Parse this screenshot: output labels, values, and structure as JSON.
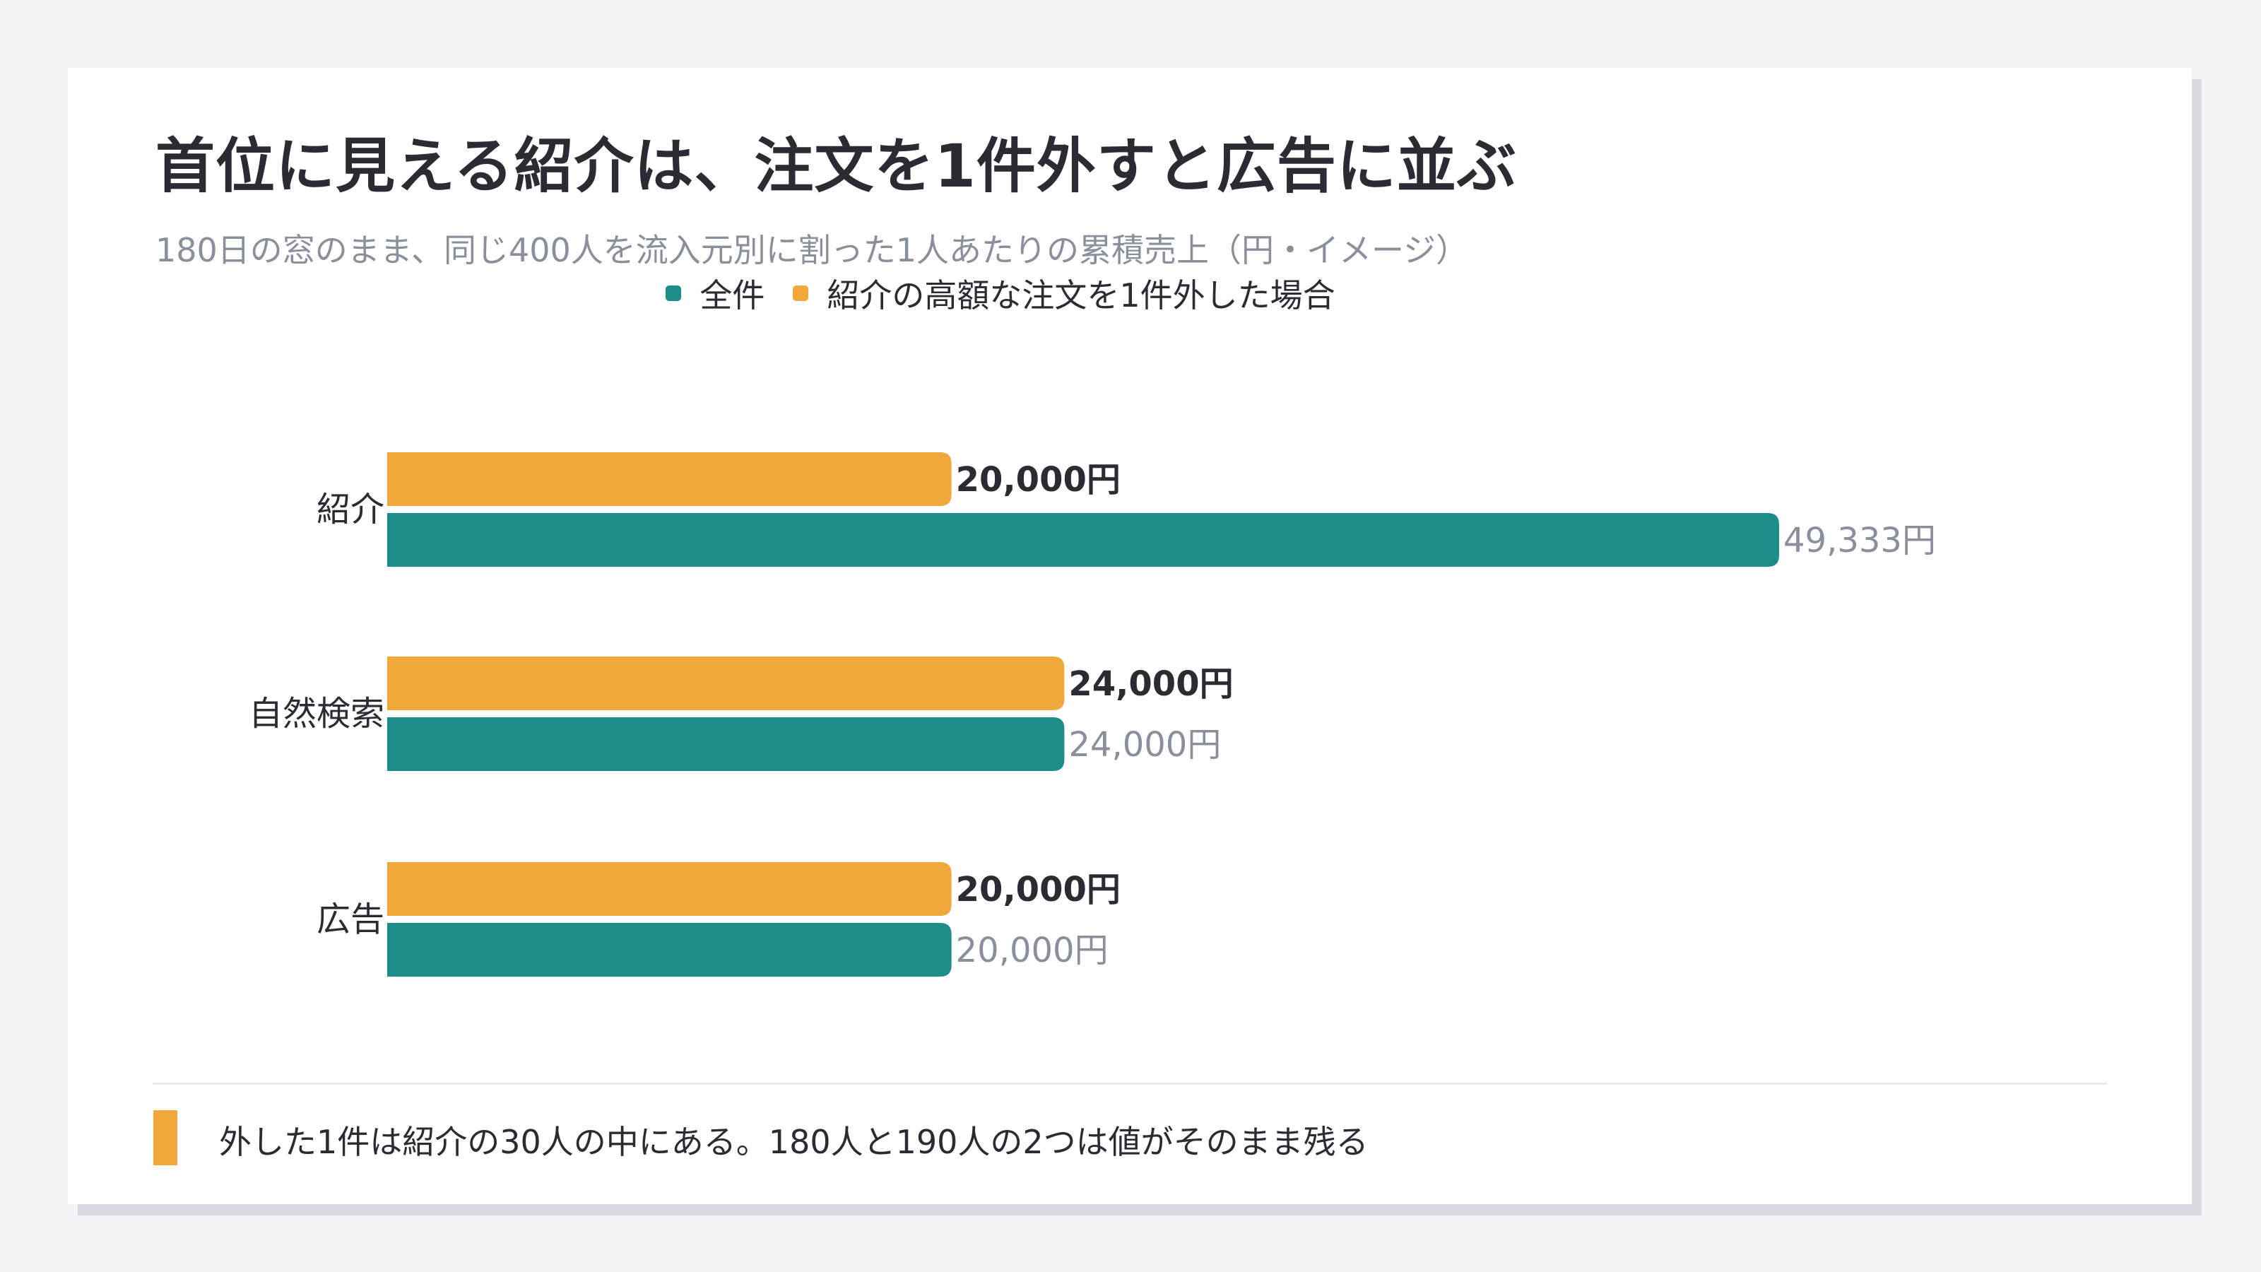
{
  "title": "首位に見える紹介は、注文を1件外すと広告に並ぶ",
  "subtitle": "180日の窓のまま、同じ400人を流入元別に割った1人あたりの累積売上（円・イメージ）",
  "footnote": "外した1件は紹介の30人の中にある。180人と190人の2つは値がそのまま残る",
  "colors": {
    "all": "#1e8c88",
    "excluded": "#f0a83a",
    "label_bold": "#2b2b33",
    "label_muted": "#8a8f9c"
  },
  "chart_data": {
    "type": "bar",
    "orientation": "horizontal",
    "title": "首位に見える紹介は、注文を1件外すと広告に並ぶ",
    "subtitle": "180日の窓のまま、同じ400人を流入元別に割った1人あたりの累積売上（円・イメージ）",
    "categories": [
      "紹介",
      "自然検索",
      "広告"
    ],
    "series": [
      {
        "name": "紹介の高額な注文を1件外した場合",
        "values": [
          20000,
          24000,
          20000
        ],
        "labels": [
          "20,000円",
          "24,000円",
          "20,000円"
        ],
        "color": "#f0a83a"
      },
      {
        "name": "全件",
        "values": [
          49333,
          24000,
          20000
        ],
        "labels": [
          "49,333円",
          "24,000円",
          "20,000円"
        ],
        "color": "#1e8c88"
      }
    ],
    "legend": [
      {
        "name": "全件",
        "color": "#1e8c88"
      },
      {
        "name": "紹介の高額な注文を1件外した場合",
        "color": "#f0a83a"
      }
    ],
    "legend_position": "top-center",
    "xlim": [
      0,
      49333
    ],
    "grid": false,
    "axes_visible": false
  }
}
